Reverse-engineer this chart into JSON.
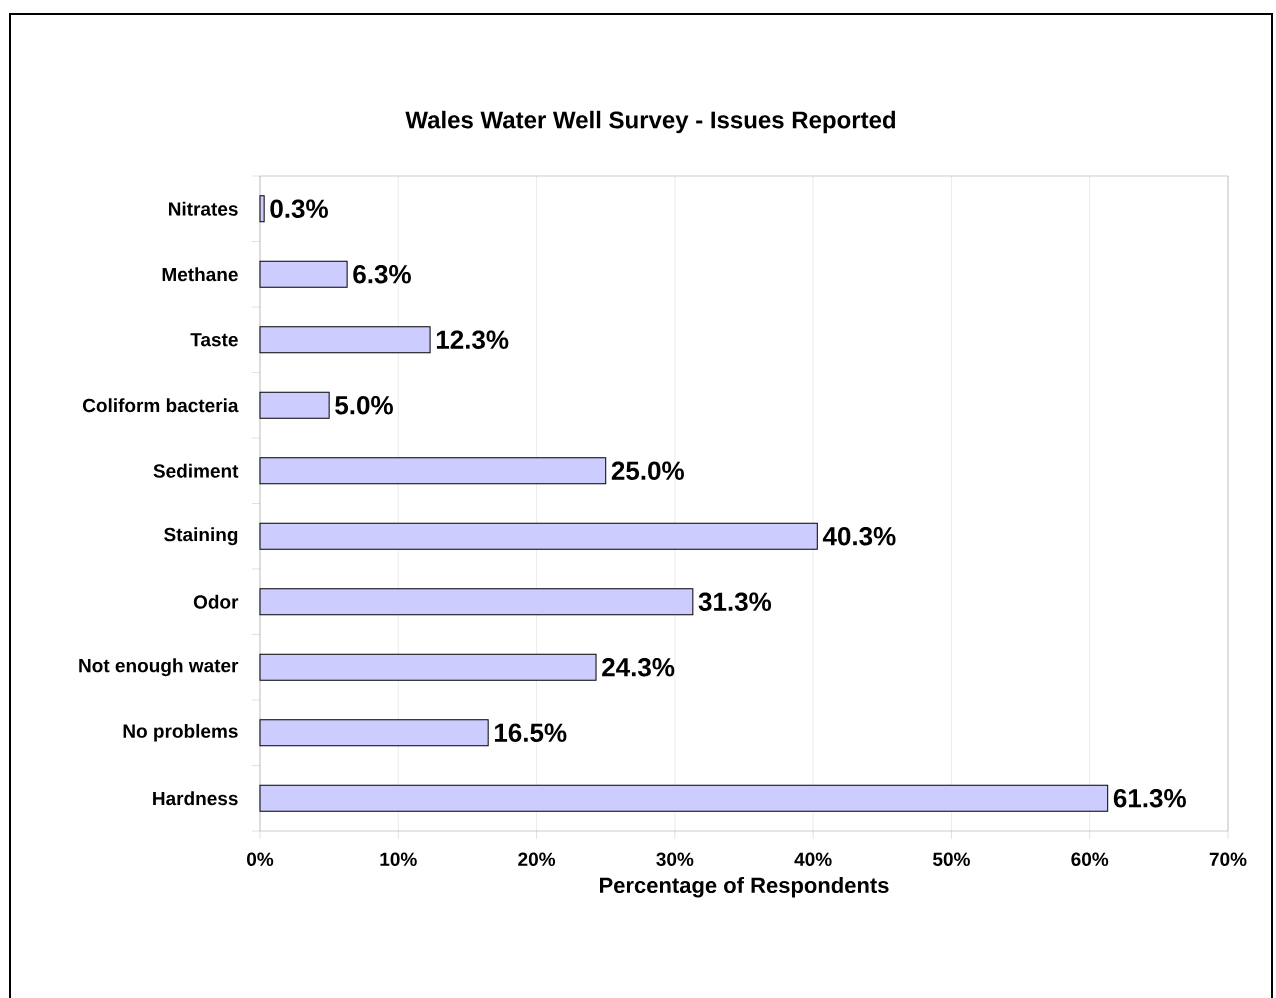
{
  "chart_data": {
    "type": "bar",
    "orientation": "horizontal",
    "title": "Wales Water Well Survey - Issues Reported",
    "xlabel": "Percentage of Respondents",
    "categories": [
      "Nitrates",
      "Methane",
      "Taste",
      "Coliform bacteria",
      "Sediment",
      "Staining",
      "Odor",
      "Not enough water",
      "No problems",
      "Hardness"
    ],
    "values": [
      0.3,
      6.3,
      12.3,
      5.0,
      25.0,
      40.3,
      31.3,
      24.3,
      16.5,
      61.3
    ],
    "value_labels": [
      "0.3%",
      "6.3%",
      "12.3%",
      "5.0%",
      "25.0%",
      "40.3%",
      "31.3%",
      "24.3%",
      "16.5%",
      "61.3%"
    ],
    "color": "#ccccff",
    "xlim": [
      0,
      70
    ],
    "xticks": [
      {
        "value": 0,
        "label": "0%"
      },
      {
        "value": 10,
        "label": "10%"
      },
      {
        "value": 20,
        "label": "20%"
      },
      {
        "value": 30,
        "label": "30%"
      },
      {
        "value": 40,
        "label": "40%"
      },
      {
        "value": 50,
        "label": "50%"
      },
      {
        "value": 60,
        "label": "60%"
      },
      {
        "value": 70,
        "label": "70%"
      }
    ],
    "grid": "x"
  }
}
